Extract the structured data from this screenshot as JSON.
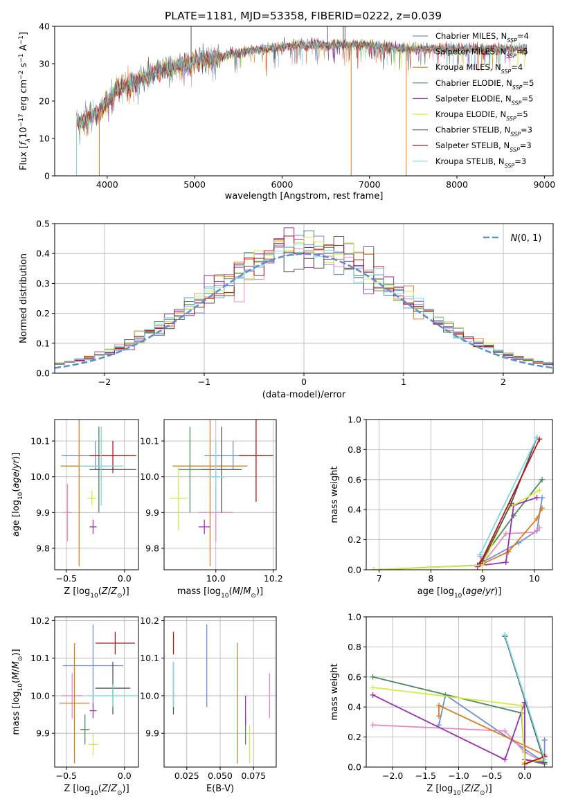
{
  "figure_title": "PLATE=1181, MJD=53358, FIBERID=0222, z=0.039",
  "palette": {
    "Chabrier MILES": "#6a8fdc",
    "Salpeter MILES": "#e88ac0",
    "Kroupa MILES": "#e07b1c",
    "Chabrier ELODIE": "#4c8a5c",
    "Salpeter ELODIE": "#9a2fb2",
    "Kroupa ELODIE": "#d4ec3c",
    "Chabrier STELIB": "#555555",
    "Salpeter STELIB": "#b81414",
    "Kroupa STELIB": "#7ad8e4"
  },
  "chart_data": [
    {
      "id": "spectrum",
      "type": "line",
      "title": "PLATE=1181, MJD=53358, FIBERID=0222, z=0.039",
      "xlabel": "wavelength [Angstrom, rest frame]",
      "ylabel": "Flux [f_λ 10^-17 erg cm^-2 s^-1 A^-1]",
      "xlim": [
        3400,
        9100
      ],
      "ylim": [
        0,
        40
      ],
      "xticks": [
        4000,
        5000,
        6000,
        7000,
        8000,
        9000
      ],
      "yticks": [
        0,
        10,
        20,
        30,
        40
      ],
      "legend_location": "top-right",
      "legend": [
        "Chabrier MILES, N_SSP=4",
        "Salpeter MILES, N_SSP=5",
        "Kroupa MILES, N_SSP=4",
        "Chabrier ELODIE, N_SSP=5",
        "Salpeter ELODIE, N_SSP=5",
        "Kroupa ELODIE, N_SSP=5",
        "Chabrier STELIB, N_SSP=3",
        "Salpeter STELIB, N_SSP=3",
        "Kroupa STELIB, N_SSP=3"
      ],
      "continuum": {
        "x": [
          3650,
          3700,
          3800,
          3900,
          4000,
          4100,
          4200,
          4300,
          4400,
          4500,
          4600,
          4700,
          4800,
          4900,
          5000,
          5200,
          5400,
          5600,
          5800,
          6000,
          6200,
          6400,
          6600,
          6800,
          7000,
          7200,
          7400,
          7600,
          7800,
          8000,
          8200,
          8400,
          8600,
          8800
        ],
        "y": [
          15,
          14,
          16,
          17,
          20,
          23,
          24,
          25,
          26,
          27,
          28,
          28.5,
          29.5,
          30,
          30.5,
          31.5,
          32.5,
          33.5,
          34,
          34.5,
          35,
          35,
          35,
          35,
          35,
          34.5,
          34,
          34,
          34,
          34,
          34,
          34,
          34,
          34
        ]
      },
      "drops": [
        {
          "x": 3650,
          "y": 0,
          "series": "Kroupa STELIB"
        },
        {
          "x": 3910,
          "y": 0,
          "series": "Kroupa MILES"
        },
        {
          "x": 6790,
          "y": 0,
          "series": "Kroupa MILES"
        },
        {
          "x": 7420,
          "y": 0,
          "series": "Kroupa MILES"
        }
      ],
      "spikes": [
        {
          "x": 4960,
          "y": 40,
          "series": "Chabrier STELIB"
        },
        {
          "x": 6520,
          "y": 40,
          "series": "Chabrier STELIB"
        },
        {
          "x": 6700,
          "y": 40,
          "series": "Chabrier STELIB"
        },
        {
          "x": 6720,
          "y": 40,
          "series": "Chabrier STELIB"
        }
      ]
    },
    {
      "id": "residuals",
      "type": "line",
      "xlabel": "(data-model)/error",
      "ylabel": "Normed distribution",
      "xlim": [
        -2.5,
        2.5
      ],
      "ylim": [
        0,
        0.5
      ],
      "xticks": [
        -2,
        -1,
        0,
        1,
        2
      ],
      "yticks": [
        0.0,
        0.1,
        0.2,
        0.3,
        0.4,
        0.5
      ],
      "grid": true,
      "legend_location": "top-right",
      "legend": [
        "N(0,1)"
      ],
      "reference": "standard normal, dashed line",
      "bin_width": 0.1
    },
    {
      "id": "age_vs_z",
      "type": "scatter",
      "xlabel": "Z [log10(Z/Z⊙)]",
      "ylabel": "age [log10(age/yr)]",
      "xlim": [
        -0.6,
        0.12
      ],
      "ylim": [
        9.74,
        10.16
      ],
      "xticks": [
        -0.5,
        0.0
      ],
      "yticks": [
        9.8,
        9.9,
        10.0,
        10.1
      ],
      "grid": true,
      "points": [
        {
          "series": "Chabrier MILES",
          "x": -0.25,
          "xerr": 0.29,
          "y": 10.06,
          "yerr": 0.04
        },
        {
          "series": "Salpeter MILES",
          "x": -0.49,
          "xerr": 0.04,
          "y": 9.9,
          "yerr": 0.08
        },
        {
          "series": "Kroupa MILES",
          "x": -0.39,
          "xerr": 0.16,
          "y": 10.03,
          "yerr": 0.28
        },
        {
          "series": "Chabrier ELODIE",
          "x": -0.22,
          "xerr": 0.03,
          "y": 10.02,
          "yerr": 0.12
        },
        {
          "series": "Salpeter ELODIE",
          "x": -0.27,
          "xerr": 0.03,
          "y": 9.86,
          "yerr": 0.02
        },
        {
          "series": "Kroupa ELODIE",
          "x": -0.28,
          "xerr": 0.04,
          "y": 9.94,
          "yerr": 0.02
        },
        {
          "series": "Chabrier STELIB",
          "x": -0.1,
          "xerr": 0.2,
          "y": 10.02,
          "yerr": 0.01
        },
        {
          "series": "Salpeter STELIB",
          "x": -0.1,
          "xerr": 0.2,
          "y": 10.06,
          "yerr": 0.04
        },
        {
          "series": "Kroupa STELIB",
          "x": -0.2,
          "xerr": 0.19,
          "y": 10.03,
          "yerr": 0.11
        }
      ]
    },
    {
      "id": "age_vs_mass",
      "type": "scatter",
      "xlabel": "mass [log10(M/M⊙)]",
      "ylabel": "",
      "xlim": [
        9.82,
        10.21
      ],
      "ylim": [
        9.74,
        10.16
      ],
      "xticks": [
        10.0,
        10.2
      ],
      "yticks": [
        9.8,
        9.9,
        10.0,
        10.1
      ],
      "grid": true,
      "points": [
        {
          "series": "Chabrier MILES",
          "x": 10.06,
          "xerr": 0.1,
          "y": 10.06,
          "yerr": 0.04
        },
        {
          "series": "Salpeter MILES",
          "x": 10.0,
          "xerr": 0.06,
          "y": 9.9,
          "yerr": 0.08
        },
        {
          "series": "Kroupa MILES",
          "x": 9.98,
          "xerr": 0.13,
          "y": 10.03,
          "yerr": 0.28
        },
        {
          "series": "Chabrier ELODIE",
          "x": 9.91,
          "xerr": 0.04,
          "y": 10.02,
          "yerr": 0.12
        },
        {
          "series": "Salpeter ELODIE",
          "x": 9.96,
          "xerr": 0.02,
          "y": 9.86,
          "yerr": 0.02
        },
        {
          "series": "Kroupa ELODIE",
          "x": 9.87,
          "xerr": 0.03,
          "y": 9.94,
          "yerr": 0.09
        },
        {
          "series": "Chabrier STELIB",
          "x": 10.02,
          "xerr": 0.07,
          "y": 10.02,
          "yerr": 0.12
        },
        {
          "series": "Salpeter STELIB",
          "x": 10.14,
          "xerr": 0.06,
          "y": 10.06,
          "yerr": 0.13
        },
        {
          "series": "Kroupa STELIB",
          "x": 10.0,
          "xerr": 0.03,
          "y": 10.0,
          "yerr": 0.1
        }
      ]
    },
    {
      "id": "massweight_vs_age",
      "type": "line",
      "xlabel": "age [log10(age/yr)]",
      "ylabel": "mass weight",
      "xlim": [
        6.75,
        10.35
      ],
      "ylim": [
        0,
        1
      ],
      "xticks": [
        7,
        8,
        9,
        10
      ],
      "yticks": [
        0.0,
        0.2,
        0.4,
        0.6,
        0.8,
        1.0
      ],
      "grid": true,
      "series": [
        {
          "name": "Chabrier MILES",
          "x": [
            8.95,
            9.0,
            9.7,
            10.05,
            10.15
          ],
          "y": [
            0.1,
            0.05,
            0.18,
            0.26,
            0.48
          ]
        },
        {
          "name": "Salpeter MILES",
          "x": [
            8.95,
            9.0,
            9.45,
            10.0,
            10.1
          ],
          "y": [
            0.09,
            0.04,
            0.24,
            0.25,
            0.28
          ]
        },
        {
          "name": "Kroupa MILES",
          "x": [
            9.0,
            9.5,
            10.05,
            10.15
          ],
          "y": [
            0.04,
            0.12,
            0.34,
            0.41
          ]
        },
        {
          "name": "Chabrier ELODIE",
          "x": [
            6.9,
            8.9,
            9.6,
            10.15
          ],
          "y": [
            0.0,
            0.03,
            0.36,
            0.6
          ]
        },
        {
          "name": "Salpeter ELODIE",
          "x": [
            8.9,
            9.0,
            9.45,
            9.6,
            10.05
          ],
          "y": [
            0.02,
            0.03,
            0.05,
            0.43,
            0.48
          ]
        },
        {
          "name": "Kroupa ELODIE",
          "x": [
            6.9,
            9.0,
            9.5,
            10.1
          ],
          "y": [
            0.0,
            0.03,
            0.41,
            0.53
          ]
        },
        {
          "name": "Chabrier STELIB",
          "x": [
            9.0,
            9.55,
            10.05
          ],
          "y": [
            0.06,
            0.44,
            0.88
          ]
        },
        {
          "name": "Salpeter STELIB",
          "x": [
            8.95,
            10.1
          ],
          "y": [
            0.04,
            0.87
          ]
        },
        {
          "name": "Kroupa STELIB",
          "x": [
            8.95,
            10.05
          ],
          "y": [
            0.1,
            0.88
          ]
        }
      ]
    },
    {
      "id": "mass_vs_z",
      "type": "scatter",
      "xlabel": "Z [log10(Z/Z⊙)]",
      "ylabel": "mass [log10(M/M⊙)]",
      "xlim": [
        -0.6,
        0.12
      ],
      "ylim": [
        9.81,
        10.21
      ],
      "xticks": [
        -0.5,
        0.0
      ],
      "yticks": [
        9.9,
        10.0,
        10.1,
        10.2
      ],
      "grid": true,
      "points": [
        {
          "series": "Chabrier MILES",
          "x": -0.27,
          "xerr": 0.26,
          "y": 10.08,
          "yerr": 0.11
        },
        {
          "series": "Salpeter MILES",
          "x": -0.45,
          "xerr": 0.09,
          "y": 10.0,
          "yerr": 0.06
        },
        {
          "series": "Kroupa MILES",
          "x": -0.43,
          "xerr": 0.13,
          "y": 9.98,
          "yerr": 0.16
        },
        {
          "series": "Chabrier ELODIE",
          "x": -0.34,
          "xerr": 0.04,
          "y": 9.91,
          "yerr": 0.04
        },
        {
          "series": "Salpeter ELODIE",
          "x": -0.27,
          "xerr": 0.03,
          "y": 9.96,
          "yerr": 0.02
        },
        {
          "series": "Kroupa ELODIE",
          "x": -0.27,
          "xerr": 0.04,
          "y": 9.87,
          "yerr": 0.03
        },
        {
          "series": "Chabrier STELIB",
          "x": -0.1,
          "xerr": 0.15,
          "y": 10.02,
          "yerr": 0.07
        },
        {
          "series": "Salpeter STELIB",
          "x": -0.08,
          "xerr": 0.17,
          "y": 10.14,
          "yerr": 0.03
        },
        {
          "series": "Kroupa STELIB",
          "x": -0.1,
          "xerr": 0.22,
          "y": 10.0,
          "yerr": 0.03
        }
      ]
    },
    {
      "id": "mass_vs_ebv",
      "type": "scatter",
      "xlabel": "E(B-V)",
      "ylabel": "",
      "xlim": [
        0.008,
        0.092
      ],
      "ylim": [
        9.81,
        10.21
      ],
      "xticks": [
        0.025,
        0.05,
        0.075
      ],
      "xtick_labels": [
        "0.025",
        "0.050",
        "0.075"
      ],
      "yticks": [
        9.9,
        10.0,
        10.1,
        10.2
      ],
      "grid": true,
      "points": [
        {
          "series": "Chabrier MILES",
          "x": 0.04,
          "xerr": 0.0,
          "y": 10.08,
          "yerr": 0.11
        },
        {
          "series": "Salpeter MILES",
          "x": 0.087,
          "xerr": 0.0,
          "y": 10.0,
          "yerr": 0.06
        },
        {
          "series": "Kroupa MILES",
          "x": 0.063,
          "xerr": 0.0,
          "y": 9.98,
          "yerr": 0.16
        },
        {
          "series": "Chabrier ELODIE",
          "x": 0.069,
          "xerr": 0.0,
          "y": 9.91,
          "yerr": 0.04
        },
        {
          "series": "Salpeter ELODIE",
          "x": 0.069,
          "xerr": 0.0,
          "y": 9.96,
          "yerr": 0.04
        },
        {
          "series": "Kroupa ELODIE",
          "x": 0.072,
          "xerr": 0.0,
          "y": 9.87,
          "yerr": 0.05
        },
        {
          "series": "Chabrier STELIB",
          "x": 0.015,
          "xerr": 0.0,
          "y": 10.02,
          "yerr": 0.07
        },
        {
          "series": "Salpeter STELIB",
          "x": 0.015,
          "xerr": 0.0,
          "y": 10.14,
          "yerr": 0.03
        },
        {
          "series": "Kroupa STELIB",
          "x": 0.015,
          "xerr": 0.0,
          "y": 10.03,
          "yerr": 0.06
        }
      ]
    },
    {
      "id": "massweight_vs_z",
      "type": "line",
      "xlabel": "Z [log10(Z/Z⊙)]",
      "ylabel": "mass weight",
      "xlim": [
        -2.4,
        0.42
      ],
      "ylim": [
        0,
        1
      ],
      "xticks": [
        -2.0,
        -1.5,
        -1.0,
        -0.5,
        0.0
      ],
      "yticks": [
        0.0,
        0.2,
        0.4,
        0.6,
        0.8,
        1.0
      ],
      "grid": true,
      "series": [
        {
          "name": "Chabrier MILES",
          "x": [
            -1.3,
            -1.2,
            0.3,
            0.3
          ],
          "y": [
            0.28,
            0.48,
            0.03,
            0.18
          ]
        },
        {
          "name": "Salpeter MILES",
          "x": [
            -2.3,
            -0.3,
            0.0,
            0.3
          ],
          "y": [
            0.28,
            0.24,
            0.1,
            0.03
          ]
        },
        {
          "name": "Kroupa MILES",
          "x": [
            -1.3,
            -1.3,
            0.3
          ],
          "y": [
            0.34,
            0.41,
            0.08
          ]
        },
        {
          "name": "Chabrier ELODIE",
          "x": [
            -2.3,
            -0.05,
            0.0,
            0.3
          ],
          "y": [
            0.6,
            0.36,
            0.05,
            0.02
          ]
        },
        {
          "name": "Salpeter ELODIE",
          "x": [
            -2.3,
            -0.3,
            0.0,
            0.0,
            0.3
          ],
          "y": [
            0.48,
            0.05,
            0.43,
            0.05,
            0.03
          ]
        },
        {
          "name": "Kroupa ELODIE",
          "x": [
            -2.3,
            -0.05,
            0.0,
            0.3
          ],
          "y": [
            0.53,
            0.41,
            0.03,
            0.05
          ]
        },
        {
          "name": "Chabrier STELIB",
          "x": [
            -0.3,
            0.3
          ],
          "y": [
            0.87,
            0.03
          ]
        },
        {
          "name": "Salpeter STELIB",
          "x": [
            0.0,
            0.3
          ],
          "y": [
            0.02,
            0.07
          ]
        },
        {
          "name": "Kroupa STELIB",
          "x": [
            -0.3,
            0.3
          ],
          "y": [
            0.88,
            0.05
          ]
        }
      ]
    }
  ]
}
